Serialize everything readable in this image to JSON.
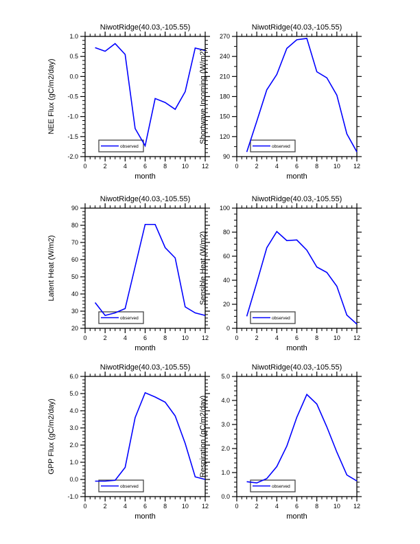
{
  "page": {
    "background": "#ffffff",
    "text_color": "#000000",
    "frame_color": "#000000"
  },
  "chart_data": [
    {
      "id": "nee-flux",
      "type": "line",
      "title": "NiwotRidge(40.03,-105.55)",
      "xlabel": "month",
      "ylabel": "NEE Flux (gC/m2/day)",
      "x": [
        1,
        2,
        3,
        4,
        5,
        6,
        7,
        8,
        9,
        10,
        11,
        12
      ],
      "series": [
        {
          "name": "observed",
          "color": "#0000ff",
          "values": [
            0.72,
            0.63,
            0.82,
            0.55,
            -1.3,
            -1.73,
            -0.55,
            -0.65,
            -0.82,
            -0.38,
            0.71,
            0.65
          ]
        }
      ],
      "xlim": [
        0,
        12
      ],
      "ylim": [
        -2.0,
        1.0
      ],
      "xtick_major": 2,
      "xtick_minor": 0.5,
      "ytick_major": 0.5,
      "ytick_minor": 0.1,
      "ytick_decimals": 1,
      "grid": "off",
      "legend": {
        "label": "observed",
        "position": "lower-left"
      },
      "subplot": {
        "row": 0,
        "col": 0
      }
    },
    {
      "id": "shortwave-incoming",
      "type": "line",
      "title": "NiwotRidge(40.03,-105.55)",
      "xlabel": "month",
      "ylabel": "Shortwave Incoming (W/m2)",
      "x": [
        1,
        2,
        3,
        4,
        5,
        6,
        7,
        8,
        9,
        10,
        11,
        12
      ],
      "series": [
        {
          "name": "observed",
          "color": "#0000ff",
          "values": [
            97,
            143,
            190,
            213,
            252,
            265,
            267,
            217,
            208,
            182,
            124,
            97
          ]
        }
      ],
      "xlim": [
        0,
        12
      ],
      "ylim": [
        90,
        270
      ],
      "xtick_major": 2,
      "xtick_minor": 0.5,
      "ytick_major": 30,
      "ytick_minor": 15,
      "ytick_decimals": 0,
      "grid": "off",
      "legend": {
        "label": "observed",
        "position": "lower-left"
      },
      "subplot": {
        "row": 0,
        "col": 1
      }
    },
    {
      "id": "latent-heat",
      "type": "line",
      "title": "NiwotRidge(40.03,-105.55)",
      "xlabel": "month",
      "ylabel": "Latent Heat (W/m2)",
      "x": [
        1,
        2,
        3,
        4,
        5,
        6,
        7,
        8,
        9,
        10,
        11,
        12
      ],
      "series": [
        {
          "name": "observed",
          "color": "#0000ff",
          "values": [
            35,
            27.5,
            29,
            31.5,
            56,
            80.5,
            80.5,
            67,
            61,
            32.5,
            29,
            27.5
          ]
        }
      ],
      "xlim": [
        0,
        12
      ],
      "ylim": [
        20,
        90
      ],
      "xtick_major": 2,
      "xtick_minor": 0.5,
      "ytick_major": 10,
      "ytick_minor": 2,
      "ytick_decimals": 0,
      "grid": "off",
      "legend": {
        "label": "observed",
        "position": "lower-left"
      },
      "subplot": {
        "row": 1,
        "col": 0
      }
    },
    {
      "id": "sensible-heat",
      "type": "line",
      "title": "NiwotRidge(40.03,-105.55)",
      "xlabel": "month",
      "ylabel": "Sensible Heat (W/m2)",
      "x": [
        1,
        2,
        3,
        4,
        5,
        6,
        7,
        8,
        9,
        10,
        11,
        12
      ],
      "series": [
        {
          "name": "observed",
          "color": "#0000ff",
          "values": [
            10,
            38,
            67,
            80.5,
            73,
            73.5,
            65,
            51,
            46.5,
            35,
            11,
            3.5
          ]
        }
      ],
      "xlim": [
        0,
        12
      ],
      "ylim": [
        0,
        100
      ],
      "xtick_major": 2,
      "xtick_minor": 0.5,
      "ytick_major": 20,
      "ytick_minor": 5,
      "ytick_decimals": 0,
      "grid": "off",
      "legend": {
        "label": "observed",
        "position": "lower-left"
      },
      "subplot": {
        "row": 1,
        "col": 1
      }
    },
    {
      "id": "gpp-flux",
      "type": "line",
      "title": "NiwotRidge(40.03,-105.55)",
      "xlabel": "month",
      "ylabel": "GPP Flux (gC/m2/day)",
      "x": [
        1,
        2,
        3,
        4,
        5,
        6,
        7,
        8,
        9,
        10,
        11,
        12
      ],
      "series": [
        {
          "name": "observed",
          "color": "#0000ff",
          "values": [
            -0.1,
            -0.1,
            -0.05,
            0.7,
            3.6,
            5.05,
            4.8,
            4.5,
            3.7,
            2.1,
            0.15,
            0.0
          ]
        }
      ],
      "xlim": [
        0,
        12
      ],
      "ylim": [
        -1.0,
        6.0
      ],
      "xtick_major": 2,
      "xtick_minor": 0.5,
      "ytick_major": 1.0,
      "ytick_minor": 0.2,
      "ytick_decimals": 1,
      "grid": "off",
      "legend": {
        "label": "observed",
        "position": "lower-left"
      },
      "subplot": {
        "row": 2,
        "col": 0
      }
    },
    {
      "id": "respiration",
      "type": "line",
      "title": "NiwotRidge(40.03,-105.55)",
      "xlabel": "month",
      "ylabel": "Respiration (gC/m2/day)",
      "x": [
        1,
        2,
        3,
        4,
        5,
        6,
        7,
        8,
        9,
        10,
        11,
        12
      ],
      "series": [
        {
          "name": "observed",
          "color": "#0000ff",
          "values": [
            0.62,
            0.57,
            0.75,
            1.25,
            2.1,
            3.3,
            4.25,
            3.85,
            2.9,
            1.85,
            0.9,
            0.65
          ]
        }
      ],
      "xlim": [
        0,
        12
      ],
      "ylim": [
        0.0,
        5.0
      ],
      "xtick_major": 2,
      "xtick_minor": 0.5,
      "ytick_major": 1.0,
      "ytick_minor": 0.2,
      "ytick_decimals": 1,
      "grid": "off",
      "legend": {
        "label": "observed",
        "position": "lower-left"
      },
      "subplot": {
        "row": 2,
        "col": 1
      }
    }
  ]
}
